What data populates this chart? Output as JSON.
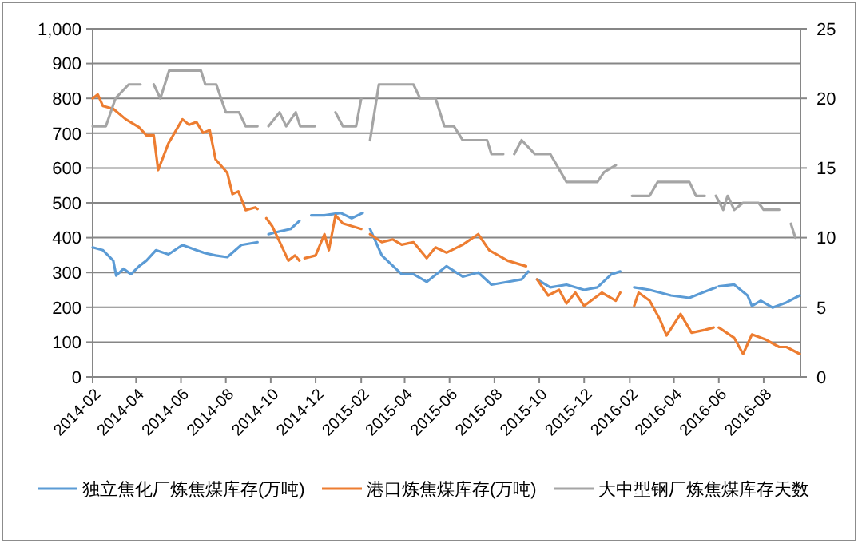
{
  "chart_data": {
    "type": "line",
    "xlim": [
      "2014-02-01",
      "2016-09-20"
    ],
    "xticks": [
      "2014-02",
      "2014-04",
      "2014-06",
      "2014-08",
      "2014-10",
      "2014-12",
      "2015-02",
      "2015-04",
      "2015-06",
      "2015-08",
      "2015-10",
      "2015-12",
      "2016-02",
      "2016-04",
      "2016-06",
      "2016-08"
    ],
    "ylim": [
      0,
      1000
    ],
    "yticks": [
      {
        "value": 0,
        "label": "0"
      },
      {
        "value": 100,
        "label": "100"
      },
      {
        "value": 200,
        "label": "200"
      },
      {
        "value": 300,
        "label": "300"
      },
      {
        "value": 400,
        "label": "400"
      },
      {
        "value": 500,
        "label": "500"
      },
      {
        "value": 600,
        "label": "600"
      },
      {
        "value": 700,
        "label": "700"
      },
      {
        "value": 800,
        "label": "800"
      },
      {
        "value": 900,
        "label": "900"
      },
      {
        "value": 1000,
        "label": "1,000"
      }
    ],
    "y2lim": [
      0,
      25
    ],
    "y2ticks": [
      0,
      5,
      10,
      15,
      20,
      25
    ],
    "grid": "y",
    "legend": "bottom",
    "marker": "none",
    "line_style": "solid",
    "series": [
      {
        "name": "独立焦化厂炼焦煤库存(万吨)",
        "color": "#5b9bd5",
        "x": [
          "2014-02-01",
          "2014-02-15",
          "2014-03-01",
          "2014-03-05",
          "2014-03-15",
          "2014-03-25",
          "2014-04-05",
          "2014-04-15",
          "2014-04-28",
          "2014-05-15",
          "2014-06-03",
          "2014-06-22",
          "2014-07-03",
          "2014-07-18",
          "2014-08-03",
          "2014-08-22",
          "2014-09-13",
          "2014-09-20",
          "2014-09-28",
          "2014-10-13",
          "2014-10-28",
          "2014-11-09",
          "2014-11-16",
          "2014-11-25",
          "2014-12-13",
          "2015-01-04",
          "2015-01-19",
          "2015-02-03",
          "2015-02-08",
          "2015-02-13",
          "2015-03-01",
          "2015-03-28",
          "2015-04-13",
          "2015-05-01",
          "2015-05-28",
          "2015-06-19",
          "2015-07-10",
          "2015-07-28",
          "2015-08-19",
          "2015-09-07",
          "2015-09-16",
          "2015-09-22",
          "2015-09-28",
          "2015-10-16",
          "2015-11-07",
          "2015-12-01",
          "2015-12-19",
          "2016-01-07",
          "2016-01-19",
          "2016-01-28",
          "2016-02-07",
          "2016-02-28",
          "2016-03-28",
          "2016-04-22",
          "2016-05-13",
          "2016-05-28",
          "2016-05-30",
          "2016-06-01",
          "2016-06-22",
          "2016-07-10",
          "2016-07-16",
          "2016-07-28",
          "2016-08-13",
          "2016-09-01",
          "2016-09-19"
        ],
        "values": [
          372,
          364,
          334,
          291,
          311,
          295,
          318,
          334,
          364,
          352,
          379,
          364,
          356,
          349,
          344,
          379,
          387,
          null,
          410,
          418,
          425,
          448,
          null,
          464,
          464,
          471,
          456,
          471,
          null,
          425,
          349,
          295,
          295,
          273,
          318,
          288,
          300,
          265,
          273,
          280,
          303,
          null,
          280,
          257,
          265,
          250,
          257,
          295,
          303,
          null,
          257,
          250,
          234,
          227,
          245,
          257,
          null,
          260,
          265,
          234,
          204,
          219,
          199,
          214,
          234
        ]
      },
      {
        "name": "港口炼焦煤库存(万吨)",
        "color": "#ed7d31",
        "x": [
          "2014-02-01",
          "2014-02-08",
          "2014-02-15",
          "2014-03-01",
          "2014-03-18",
          "2014-04-05",
          "2014-04-15",
          "2014-04-25",
          "2014-05-01",
          "2014-05-15",
          "2014-06-03",
          "2014-06-12",
          "2014-06-22",
          "2014-07-01",
          "2014-07-10",
          "2014-07-18",
          "2014-08-03",
          "2014-08-10",
          "2014-08-18",
          "2014-08-28",
          "2014-09-10",
          "2014-09-13",
          "2014-09-20",
          "2014-09-25",
          "2014-10-03",
          "2014-10-15",
          "2014-10-25",
          "2014-11-03",
          "2014-11-09",
          "2014-11-12",
          "2014-11-16",
          "2014-12-01",
          "2014-12-13",
          "2014-12-19",
          "2014-12-28",
          "2015-01-07",
          "2015-02-01",
          "2015-02-07",
          "2015-02-13",
          "2015-03-01",
          "2015-03-16",
          "2015-03-28",
          "2015-04-13",
          "2015-05-01",
          "2015-05-13",
          "2015-05-28",
          "2015-06-19",
          "2015-07-10",
          "2015-07-25",
          "2015-08-19",
          "2015-09-13",
          "2015-09-20",
          "2015-09-28",
          "2015-10-13",
          "2015-10-28",
          "2015-11-07",
          "2015-11-19",
          "2015-12-01",
          "2015-12-25",
          "2016-01-13",
          "2016-01-19",
          "2016-01-28",
          "2016-02-07",
          "2016-02-13",
          "2016-02-28",
          "2016-03-13",
          "2016-03-22",
          "2016-04-10",
          "2016-04-25",
          "2016-05-13",
          "2016-05-25",
          "2016-05-30",
          "2016-06-01",
          "2016-06-22",
          "2016-07-04",
          "2016-07-16",
          "2016-08-04",
          "2016-08-22",
          "2016-09-01",
          "2016-09-19"
        ],
        "values": [
          800,
          811,
          778,
          770,
          740,
          717,
          694,
          694,
          594,
          671,
          740,
          724,
          732,
          701,
          709,
          625,
          586,
          525,
          533,
          479,
          487,
          482,
          null,
          456,
          433,
          380,
          334,
          349,
          334,
          null,
          341,
          349,
          410,
          364,
          464,
          441,
          425,
          null,
          410,
          387,
          395,
          380,
          387,
          341,
          372,
          357,
          380,
          410,
          364,
          334,
          318,
          null,
          280,
          234,
          250,
          211,
          242,
          204,
          242,
          219,
          242,
          null,
          204,
          242,
          219,
          165,
          119,
          181,
          127,
          135,
          142,
          null,
          142,
          112,
          66,
          122,
          107,
          86,
          86,
          66
        ]
      },
      {
        "name": "大中型钢厂炼焦煤库存天数",
        "color": "#a5a5a5",
        "axis": "y2",
        "x": [
          "2014-02-01",
          "2014-02-19",
          "2014-03-04",
          "2014-03-22",
          "2014-04-07",
          "2014-04-15",
          "2014-04-25",
          "2014-05-04",
          "2014-05-16",
          "2014-06-28",
          "2014-07-04",
          "2014-07-19",
          "2014-08-01",
          "2014-08-19",
          "2014-08-28",
          "2014-09-13",
          "2014-09-20",
          "2014-09-28",
          "2014-10-13",
          "2014-10-22",
          "2014-11-04",
          "2014-11-10",
          "2014-11-25",
          "2014-11-30",
          "2014-12-07",
          "2014-12-28",
          "2015-01-07",
          "2015-01-25",
          "2015-02-01",
          "2015-02-06",
          "2015-02-13",
          "2015-02-25",
          "2015-04-13",
          "2015-04-22",
          "2015-05-13",
          "2015-05-25",
          "2015-06-07",
          "2015-06-19",
          "2015-07-22",
          "2015-07-28",
          "2015-08-13",
          "2015-08-20",
          "2015-08-28",
          "2015-09-07",
          "2015-09-25",
          "2015-10-16",
          "2015-11-07",
          "2015-12-19",
          "2015-12-28",
          "2016-01-13",
          "2016-01-20",
          "2016-02-04",
          "2016-02-28",
          "2016-03-10",
          "2016-04-22",
          "2016-05-01",
          "2016-05-13",
          "2016-05-20",
          "2016-05-28",
          "2016-06-07",
          "2016-06-13",
          "2016-06-22",
          "2016-07-04",
          "2016-07-25",
          "2016-08-01",
          "2016-08-22",
          "2016-09-01",
          "2016-09-07",
          "2016-09-13"
        ],
        "values": [
          18,
          18,
          20,
          21,
          21,
          null,
          21,
          20,
          22,
          22,
          21,
          21,
          19,
          19,
          18,
          18,
          null,
          18,
          19,
          18,
          19,
          18,
          18,
          18,
          null,
          19,
          18,
          18,
          20,
          null,
          17,
          21,
          21,
          20,
          20,
          18,
          18,
          17,
          17,
          16,
          16,
          null,
          16,
          17,
          16,
          16,
          14,
          14,
          14.7,
          15.2,
          null,
          13,
          13,
          14,
          14,
          13,
          13,
          null,
          13,
          12,
          13,
          12,
          12.5,
          12.5,
          12,
          12,
          null,
          11,
          10
        ]
      }
    ]
  }
}
